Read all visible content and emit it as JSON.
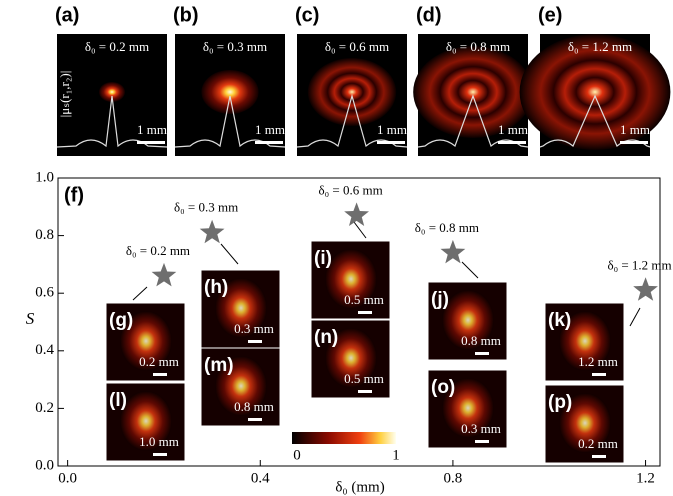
{
  "chart_data": {
    "type": "scatter",
    "x": [
      0.2,
      0.3,
      0.6,
      0.8,
      1.2
    ],
    "values": [
      0.66,
      0.81,
      0.87,
      0.74,
      0.61
    ],
    "color": "#6e6e6e",
    "point_labels": [
      "δ₀ = 0.2 mm",
      "δ₀ = 0.3 mm",
      "δ₀ = 0.6 mm",
      "δ₀ = 0.8 mm",
      "δ₀ = 1.2 mm"
    ],
    "panel_label": "(f)",
    "xlabel": "δ₀ (mm)",
    "ylabel": "S",
    "xlim": [
      -0.02,
      1.23
    ],
    "ylim": [
      0,
      1.0
    ],
    "xticks": [
      {
        "value": 0,
        "label": "0.0"
      },
      0.4,
      0.8,
      1.2
    ],
    "yticks": [
      {
        "value": 0,
        "label": "0.0"
      },
      0.2,
      0.4,
      0.6,
      0.8,
      {
        "value": 1,
        "label": "1.0"
      }
    ]
  },
  "panels": [
    {
      "label": "(a)",
      "delta": "δ₀ = 0.2 mm",
      "scale": "1 mm"
    },
    {
      "label": "(b)",
      "delta": "δ₀ = 0.3 mm",
      "scale": "1 mm"
    },
    {
      "label": "(c)",
      "delta": "δ₀ = 0.6 mm",
      "scale": "1 mm"
    },
    {
      "label": "(d)",
      "delta": "δ₀ = 0.8 mm",
      "scale": "1 mm"
    },
    {
      "label": "(e)",
      "delta": "δ₀ = 1.2 mm",
      "scale": "1 mm"
    }
  ],
  "panel_ylabel": "|μₛ(r₁,r₂)|",
  "insets": [
    {
      "label": "(g)",
      "scale": "0.2 mm"
    },
    {
      "label": "(l)",
      "scale": "1.0 mm"
    },
    {
      "label": "(h)",
      "scale": "0.3 mm"
    },
    {
      "label": "(m)",
      "scale": "0.8 mm"
    },
    {
      "label": "(i)",
      "scale": "0.5 mm"
    },
    {
      "label": "(n)",
      "scale": "0.5 mm"
    },
    {
      "label": "(j)",
      "scale": "0.8 mm"
    },
    {
      "label": "(o)",
      "scale": "0.3 mm"
    },
    {
      "label": "(k)",
      "scale": "1.2 mm"
    },
    {
      "label": "(p)",
      "scale": "0.2 mm"
    }
  ],
  "colorbar": {
    "min_label": "0",
    "max_label": "1"
  }
}
